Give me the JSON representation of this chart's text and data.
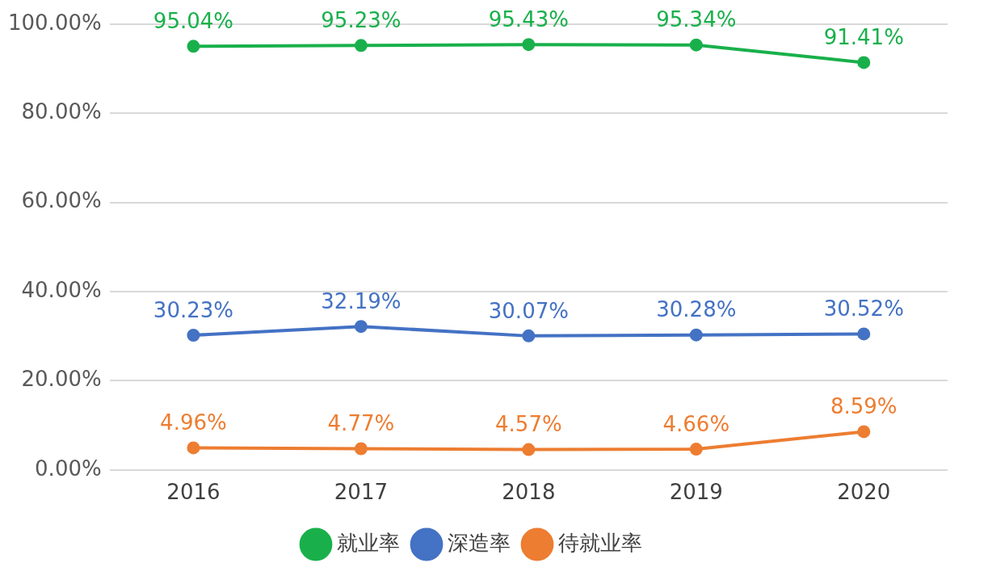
{
  "chart_data": {
    "type": "line",
    "categories": [
      "2016",
      "2017",
      "2018",
      "2019",
      "2020"
    ],
    "series": [
      {
        "name": "就业率",
        "color": "#19b04b",
        "values": [
          95.04,
          95.23,
          95.43,
          95.34,
          91.41
        ],
        "value_labels": [
          "95.04%",
          "95.23%",
          "95.43%",
          "95.34%",
          "91.41%"
        ]
      },
      {
        "name": "深造率",
        "color": "#4472c4",
        "values": [
          30.23,
          32.19,
          30.07,
          30.28,
          30.52
        ],
        "value_labels": [
          "30.23%",
          "32.19%",
          "30.07%",
          "30.28%",
          "30.52%"
        ]
      },
      {
        "name": "待就业率",
        "color": "#ed7d31",
        "values": [
          4.96,
          4.77,
          4.57,
          4.66,
          8.59
        ],
        "value_labels": [
          "4.96%",
          "4.77%",
          "4.57%",
          "4.66%",
          "8.59%"
        ]
      }
    ],
    "ylim": [
      0,
      100
    ],
    "yticks": [
      {
        "value": 0,
        "label": "0.00%"
      },
      {
        "value": 20,
        "label": "20.00%"
      },
      {
        "value": 40,
        "label": "40.00%"
      },
      {
        "value": 60,
        "label": "60.00%"
      },
      {
        "value": 80,
        "label": "80.00%"
      },
      {
        "value": 100,
        "label": "100.00%"
      }
    ],
    "grid": "y",
    "legend": "bottom",
    "marker": "circle",
    "line_style": "solid"
  }
}
